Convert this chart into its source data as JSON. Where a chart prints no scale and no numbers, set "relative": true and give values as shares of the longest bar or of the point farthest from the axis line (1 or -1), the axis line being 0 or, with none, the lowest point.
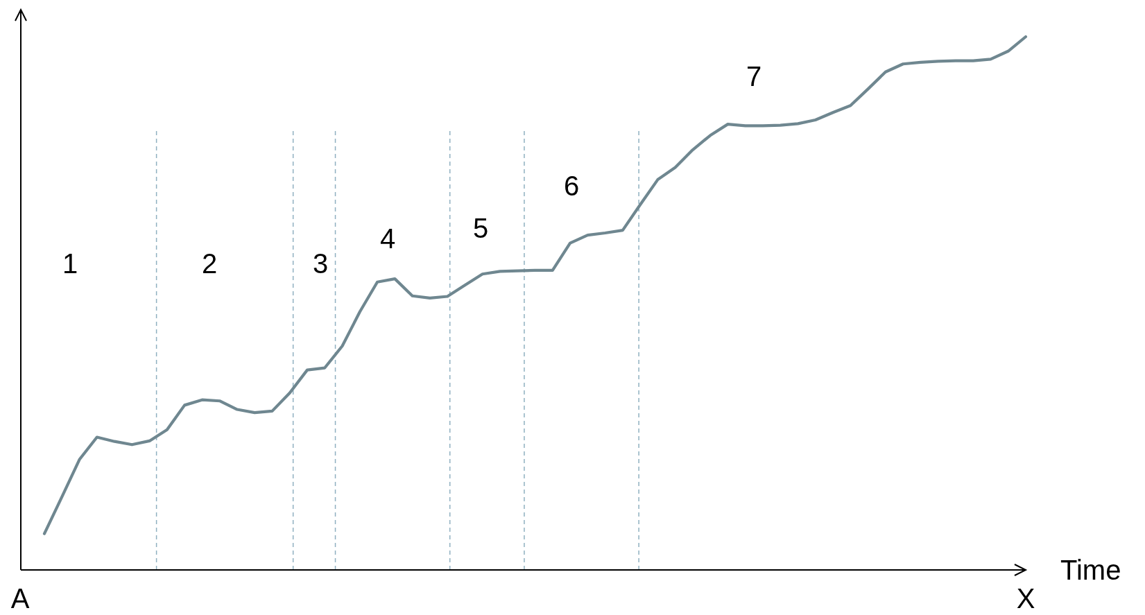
{
  "chart_data": {
    "type": "line",
    "relative": true,
    "xlabel": "Time",
    "grid": "x",
    "marker": "none",
    "line_style": "solid",
    "categories": [
      null,
      null,
      null,
      null,
      null,
      null,
      null,
      null,
      null,
      null,
      null,
      null,
      null,
      null,
      null,
      null,
      null,
      null,
      null,
      null,
      null,
      null,
      null,
      null,
      null,
      null,
      null,
      null,
      null,
      null,
      null,
      null,
      null,
      null,
      null,
      null,
      null,
      null,
      null,
      null,
      null,
      null,
      null,
      null,
      null,
      null,
      null,
      null,
      null,
      null,
      null,
      null,
      null,
      null,
      null,
      null,
      null
    ],
    "series": [
      {
        "color": "#6f8790",
        "values": [
          0.068,
          0.137,
          0.207,
          0.249,
          0.241,
          0.235,
          0.242,
          0.263,
          0.309,
          0.319,
          0.317,
          0.301,
          0.295,
          0.298,
          0.332,
          0.375,
          0.379,
          0.42,
          0.484,
          0.54,
          0.546,
          0.514,
          0.51,
          0.513,
          0.534,
          0.555,
          0.56,
          0.561,
          0.562,
          0.562,
          0.613,
          0.628,
          0.632,
          0.637,
          0.685,
          0.732,
          0.755,
          0.788,
          0.815,
          0.836,
          0.833,
          0.833,
          0.834,
          0.837,
          0.844,
          0.858,
          0.871,
          0.902,
          0.934,
          0.949,
          0.952,
          0.954,
          0.955,
          0.955,
          0.958,
          0.973,
          1.0
        ]
      }
    ],
    "annotations": [
      "1",
      "2",
      "3",
      "4",
      "5",
      "6",
      "7",
      "A",
      "X"
    ]
  }
}
